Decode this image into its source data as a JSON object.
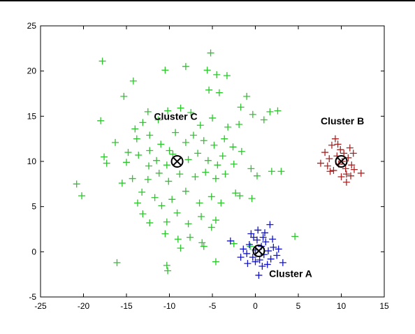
{
  "chart_data": {
    "type": "scatter",
    "title": "",
    "xlabel": "",
    "ylabel": "",
    "xlim": [
      -25,
      15
    ],
    "ylim": [
      -5,
      25
    ],
    "x_ticks": [
      -25,
      -20,
      -15,
      -10,
      -5,
      0,
      5,
      10,
      15
    ],
    "y_ticks": [
      -5,
      0,
      5,
      10,
      15,
      20,
      25
    ],
    "x_tick_labels": [
      "-25",
      "-20",
      "-15",
      "-10",
      "-5",
      "0",
      "5",
      "10",
      "15"
    ],
    "y_tick_labels": [
      "-5",
      "0",
      "5",
      "10",
      "15",
      "20",
      "25"
    ],
    "grid": false,
    "legend": "none",
    "series": [
      {
        "color": "#2bc52b",
        "marker": "plus",
        "points": [
          [
            -17.8,
            21.1
          ],
          [
            -15.3,
            17.2
          ],
          [
            -14.2,
            18.9
          ],
          [
            -10.5,
            20.1
          ],
          [
            -8.1,
            20.5
          ],
          [
            -5.2,
            22.0
          ],
          [
            -5.6,
            20.1
          ],
          [
            -4.5,
            19.6
          ],
          [
            -5.4,
            17.9
          ],
          [
            -4.2,
            17.6
          ],
          [
            -3.3,
            19.5
          ],
          [
            -1.0,
            17.2
          ],
          [
            -1.7,
            16.0
          ],
          [
            1.7,
            15.5
          ],
          [
            2.6,
            15.6
          ],
          [
            -12.5,
            15.5
          ],
          [
            -10.2,
            15.6
          ],
          [
            -8.7,
            15.9
          ],
          [
            -7.5,
            15.4
          ],
          [
            -11.3,
            14.6
          ],
          [
            -13.1,
            14.3
          ],
          [
            -14.0,
            13.6
          ],
          [
            -12.3,
            12.9
          ],
          [
            -9.3,
            13.2
          ],
          [
            -6.4,
            14.0
          ],
          [
            -5.0,
            14.8
          ],
          [
            -3.2,
            13.8
          ],
          [
            -1.9,
            14.1
          ],
          [
            -0.3,
            15.2
          ],
          [
            1.0,
            14.6
          ],
          [
            -18.0,
            14.5
          ],
          [
            -16.3,
            12.1
          ],
          [
            -14.8,
            11.0
          ],
          [
            -13.8,
            12.5
          ],
          [
            -12.3,
            11.2
          ],
          [
            -11.0,
            11.9
          ],
          [
            -10.0,
            11.2
          ],
          [
            -8.1,
            12.1
          ],
          [
            -7.2,
            12.9
          ],
          [
            -6.0,
            12.3
          ],
          [
            -4.8,
            11.8
          ],
          [
            -3.6,
            12.5
          ],
          [
            -2.6,
            11.6
          ],
          [
            -1.6,
            11.1
          ],
          [
            -17.6,
            10.5
          ],
          [
            -17.3,
            9.8
          ],
          [
            -15.0,
            9.9
          ],
          [
            -13.6,
            10.7
          ],
          [
            -12.4,
            9.5
          ],
          [
            -11.5,
            10.1
          ],
          [
            -10.3,
            9.6
          ],
          [
            -9.6,
            10.8
          ],
          [
            -7.8,
            10.2
          ],
          [
            -6.7,
            10.9
          ],
          [
            -5.5,
            10.1
          ],
          [
            -4.4,
            9.6
          ],
          [
            -3.8,
            10.6
          ],
          [
            -2.5,
            9.7
          ],
          [
            -20.8,
            7.5
          ],
          [
            -20.2,
            6.2
          ],
          [
            -15.5,
            7.6
          ],
          [
            -14.3,
            8.1
          ],
          [
            -12.5,
            8.0
          ],
          [
            -11.2,
            8.7
          ],
          [
            -10.1,
            7.8
          ],
          [
            -8.8,
            8.6
          ],
          [
            -7.0,
            8.3
          ],
          [
            -5.8,
            8.8
          ],
          [
            -4.6,
            8.1
          ],
          [
            -3.5,
            8.6
          ],
          [
            -0.5,
            9.2
          ],
          [
            0.2,
            8.4
          ],
          [
            1.9,
            8.9
          ],
          [
            3.0,
            8.9
          ],
          [
            -13.7,
            5.4
          ],
          [
            -13.2,
            6.6
          ],
          [
            -11.7,
            6.0
          ],
          [
            -10.9,
            5.1
          ],
          [
            -9.7,
            5.8
          ],
          [
            -8.1,
            6.7
          ],
          [
            -6.5,
            5.4
          ],
          [
            -5.1,
            6.1
          ],
          [
            -4.0,
            5.4
          ],
          [
            -2.3,
            6.5
          ],
          [
            -1.8,
            6.2
          ],
          [
            -0.4,
            5.9
          ],
          [
            -13.1,
            4.2
          ],
          [
            -12.3,
            3.2
          ],
          [
            -10.3,
            3.3
          ],
          [
            -9.1,
            4.3
          ],
          [
            -7.8,
            3.1
          ],
          [
            -6.3,
            3.9
          ],
          [
            -5.1,
            2.7
          ],
          [
            -4.6,
            3.5
          ],
          [
            -10.5,
            2.0
          ],
          [
            -9.0,
            1.4
          ],
          [
            -7.6,
            1.6
          ],
          [
            -6.2,
            1.0
          ],
          [
            -2.5,
            0.9
          ],
          [
            4.6,
            1.7
          ],
          [
            -8.7,
            0.4
          ],
          [
            -6.0,
            0.6
          ],
          [
            -16.1,
            -1.2
          ],
          [
            -10.3,
            -1.5
          ],
          [
            -10.2,
            -2.1
          ],
          [
            -4.6,
            -1.1
          ],
          [
            -0.6,
            0.6
          ]
        ]
      },
      {
        "color": "#1212c8",
        "marker": "plus",
        "points": [
          [
            -2.9,
            1.2
          ],
          [
            -1.4,
            0.3
          ],
          [
            -1.0,
            -0.2
          ],
          [
            -0.7,
            0.8
          ],
          [
            -0.3,
            -0.6
          ],
          [
            0.0,
            0.2
          ],
          [
            0.2,
            1.3
          ],
          [
            0.5,
            -0.9
          ],
          [
            0.7,
            0.6
          ],
          [
            1.0,
            -0.3
          ],
          [
            1.2,
            1.1
          ],
          [
            1.5,
            0.1
          ],
          [
            1.8,
            -0.8
          ],
          [
            2.1,
            0.5
          ],
          [
            2.5,
            -0.4
          ],
          [
            3.2,
            -1.2
          ],
          [
            -0.5,
            2.0
          ],
          [
            0.3,
            2.4
          ],
          [
            1.1,
            2.1
          ],
          [
            1.7,
            3.0
          ],
          [
            0.8,
            -1.6
          ],
          [
            0.4,
            -2.6
          ],
          [
            -0.9,
            -1.3
          ],
          [
            2.7,
            0.3
          ],
          [
            -1.7,
            -0.6
          ],
          [
            0.0,
            -1.1
          ],
          [
            1.4,
            -1.4
          ],
          [
            -0.2,
            1.6
          ],
          [
            0.9,
            1.6
          ],
          [
            2.0,
            1.4
          ]
        ]
      },
      {
        "color": "#aa2222",
        "marker": "plus",
        "points": [
          [
            7.6,
            9.8
          ],
          [
            8.1,
            11.0
          ],
          [
            8.4,
            9.5
          ],
          [
            8.6,
            10.3
          ],
          [
            8.9,
            11.8
          ],
          [
            9.1,
            9.0
          ],
          [
            9.3,
            12.5
          ],
          [
            9.5,
            10.6
          ],
          [
            9.7,
            9.7
          ],
          [
            9.9,
            11.3
          ],
          [
            10.1,
            10.0
          ],
          [
            10.3,
            10.9
          ],
          [
            10.5,
            9.2
          ],
          [
            10.6,
            8.6
          ],
          [
            10.8,
            10.4
          ],
          [
            11.0,
            11.5
          ],
          [
            11.2,
            9.6
          ],
          [
            11.4,
            10.9
          ],
          [
            11.1,
            8.4
          ],
          [
            12.3,
            8.7
          ],
          [
            10.6,
            7.7
          ],
          [
            10.0,
            8.3
          ],
          [
            8.7,
            8.9
          ],
          [
            9.6,
            11.9
          ],
          [
            11.5,
            9.1
          ]
        ]
      }
    ],
    "centroids": [
      {
        "x": -9.1,
        "y": 10.0,
        "marker": "circle-x"
      },
      {
        "x": 10.0,
        "y": 10.0,
        "marker": "circle-x"
      },
      {
        "x": 0.4,
        "y": 0.1,
        "marker": "circle-x"
      }
    ],
    "annotations": [
      {
        "text": "Cluster C",
        "x": -11.8,
        "y": 14.6
      },
      {
        "text": "Cluster B",
        "x": 7.6,
        "y": 14.1
      },
      {
        "text": "Cluster A",
        "x": 1.6,
        "y": -2.8
      }
    ]
  }
}
